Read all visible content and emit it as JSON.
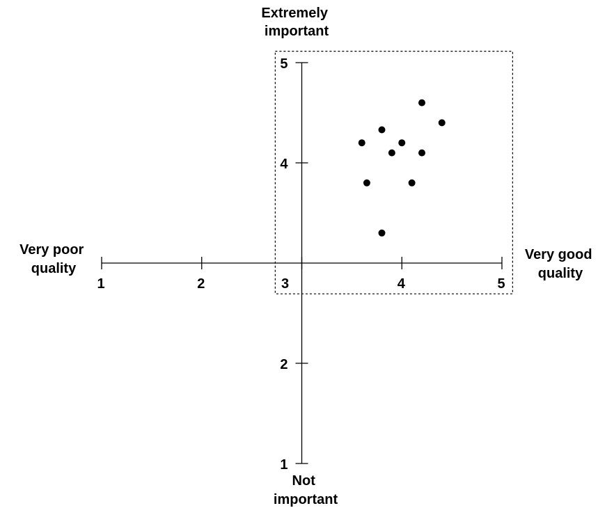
{
  "chart_data": {
    "type": "scatter",
    "x_axis": {
      "range": [
        1,
        5
      ],
      "ticks": [
        1,
        2,
        3,
        4,
        5
      ],
      "tick_labels": [
        "1",
        "2",
        "3",
        "4",
        "5"
      ],
      "label_low": [
        "Very poor",
        "quality"
      ],
      "label_high": [
        "Very good",
        "quality"
      ]
    },
    "y_axis": {
      "range": [
        1,
        5
      ],
      "ticks": [
        1,
        2,
        4,
        5
      ],
      "tick_labels": [
        "1",
        "2",
        "4",
        "5"
      ],
      "label_low": [
        "Not",
        "important"
      ],
      "label_high": [
        "Extremely",
        "important"
      ]
    },
    "axes_cross_at": {
      "x": 3,
      "y": 3
    },
    "grid": false,
    "highlight_box": {
      "x": [
        2.7,
        5.1
      ],
      "y": [
        2.7,
        5.1
      ],
      "style": "dotted"
    },
    "points": [
      {
        "x": 4.2,
        "y": 4.6
      },
      {
        "x": 4.4,
        "y": 4.4
      },
      {
        "x": 3.8,
        "y": 4.33
      },
      {
        "x": 3.6,
        "y": 4.2
      },
      {
        "x": 4.0,
        "y": 4.2
      },
      {
        "x": 3.9,
        "y": 4.1
      },
      {
        "x": 4.2,
        "y": 4.1
      },
      {
        "x": 3.65,
        "y": 3.8
      },
      {
        "x": 4.1,
        "y": 3.8
      },
      {
        "x": 3.8,
        "y": 3.3
      }
    ],
    "point_color": "#000000"
  }
}
